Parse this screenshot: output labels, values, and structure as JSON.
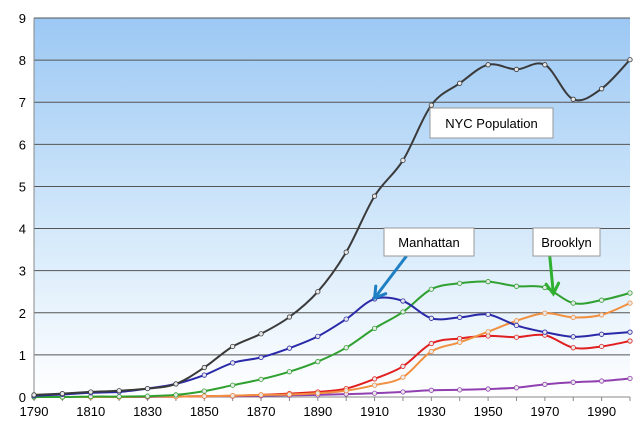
{
  "chart_data": {
    "type": "line",
    "title": "",
    "xlabel": "",
    "ylabel": "",
    "xlim": [
      1790,
      2000
    ],
    "ylim": [
      0,
      9
    ],
    "grid": true,
    "x_ticks": [
      "1790",
      "1810",
      "1830",
      "1850",
      "1870",
      "1890",
      "1910",
      "1930",
      "1950",
      "1970",
      "1990"
    ],
    "y_ticks": [
      "0",
      "1",
      "2",
      "3",
      "4",
      "5",
      "6",
      "7",
      "8",
      "9"
    ],
    "x": [
      1790,
      1800,
      1810,
      1820,
      1830,
      1840,
      1850,
      1860,
      1870,
      1880,
      1890,
      1900,
      1910,
      1920,
      1930,
      1940,
      1950,
      1960,
      1970,
      1980,
      1990,
      2000
    ],
    "series": [
      {
        "name": "NYC Population",
        "color": "#3a3a3a",
        "values": [
          0.05,
          0.08,
          0.12,
          0.15,
          0.2,
          0.31,
          0.7,
          1.2,
          1.5,
          1.9,
          2.5,
          3.44,
          4.77,
          5.62,
          6.93,
          7.45,
          7.89,
          7.78,
          7.89,
          7.07,
          7.32,
          8.01
        ]
      },
      {
        "name": "Manhattan",
        "color": "#2a2aa8",
        "values": [
          0.03,
          0.06,
          0.1,
          0.12,
          0.2,
          0.31,
          0.52,
          0.81,
          0.94,
          1.16,
          1.44,
          1.85,
          2.33,
          2.28,
          1.87,
          1.89,
          1.96,
          1.7,
          1.54,
          1.43,
          1.49,
          1.54
        ]
      },
      {
        "name": "Brooklyn",
        "color": "#30a030",
        "values": [
          0.0,
          0.0,
          0.01,
          0.01,
          0.02,
          0.05,
          0.14,
          0.28,
          0.42,
          0.6,
          0.84,
          1.17,
          1.63,
          2.02,
          2.56,
          2.7,
          2.74,
          2.63,
          2.6,
          2.23,
          2.3,
          2.47
        ]
      },
      {
        "name": "",
        "color": "#f09040",
        "values": [
          0.0,
          0.0,
          0.0,
          0.0,
          0.01,
          0.01,
          0.02,
          0.03,
          0.05,
          0.06,
          0.09,
          0.15,
          0.28,
          0.47,
          1.08,
          1.3,
          1.55,
          1.81,
          1.99,
          1.89,
          1.95,
          2.23
        ]
      },
      {
        "name": "",
        "color": "#e02020",
        "values": [
          0.0,
          0.0,
          0.0,
          0.0,
          0.01,
          0.01,
          0.02,
          0.03,
          0.05,
          0.08,
          0.12,
          0.2,
          0.43,
          0.73,
          1.27,
          1.39,
          1.45,
          1.42,
          1.47,
          1.17,
          1.2,
          1.33
        ]
      },
      {
        "name": "",
        "color": "#9040b0",
        "values": [
          0.0,
          0.0,
          0.0,
          0.0,
          0.0,
          0.01,
          0.02,
          0.02,
          0.03,
          0.04,
          0.05,
          0.07,
          0.09,
          0.12,
          0.16,
          0.17,
          0.19,
          0.22,
          0.3,
          0.35,
          0.38,
          0.44
        ]
      }
    ],
    "annotations": [
      {
        "label": "NYC Population",
        "series": "NYC Population",
        "arrow": false
      },
      {
        "label": "Manhattan",
        "series": "Manhattan",
        "arrow": true,
        "color": "#1f7fc4",
        "target_x": 1910,
        "target_y": 2.35
      },
      {
        "label": "Brooklyn",
        "series": "Brooklyn",
        "arrow": true,
        "color": "#30b030",
        "target_x": 1973,
        "target_y": 2.45
      }
    ]
  }
}
